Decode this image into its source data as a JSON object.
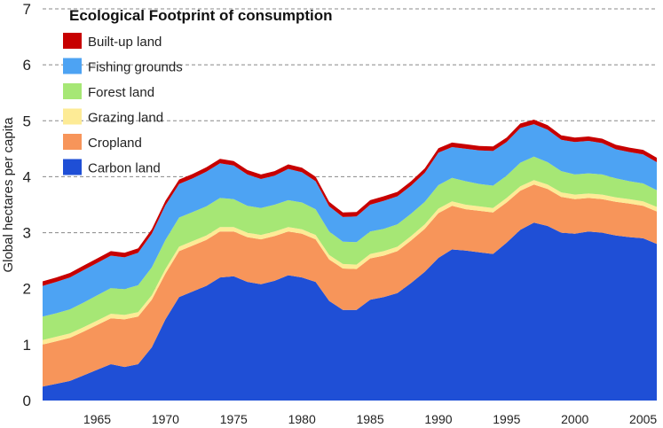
{
  "chart_data": {
    "type": "area",
    "stacked": true,
    "title": "Ecological Footprint of consumption",
    "xlabel": "",
    "ylabel": "Global hectares per capita",
    "xlim": [
      1961,
      2006
    ],
    "ylim": [
      0,
      7
    ],
    "x_ticks": [
      "1965",
      "1970",
      "1975",
      "1980",
      "1985",
      "1990",
      "1995",
      "2000",
      "2005"
    ],
    "y_ticks": [
      "0",
      "1",
      "2",
      "3",
      "4",
      "5",
      "6",
      "7"
    ],
    "grid": "dashed horizontal lines",
    "legend_position": "top-left",
    "x": [
      1961,
      1962,
      1963,
      1964,
      1965,
      1966,
      1967,
      1968,
      1969,
      1970,
      1971,
      1972,
      1973,
      1974,
      1975,
      1976,
      1977,
      1978,
      1979,
      1980,
      1981,
      1982,
      1983,
      1984,
      1985,
      1986,
      1987,
      1988,
      1989,
      1990,
      1991,
      1992,
      1993,
      1994,
      1995,
      1996,
      1997,
      1998,
      1999,
      2000,
      2001,
      2002,
      2003,
      2004,
      2005,
      2006
    ],
    "series": [
      {
        "name": "Carbon land",
        "color": "#1f4fd6",
        "values": [
          0.25,
          0.3,
          0.35,
          0.45,
          0.55,
          0.65,
          0.6,
          0.65,
          0.95,
          1.45,
          1.85,
          1.95,
          2.05,
          2.2,
          2.22,
          2.12,
          2.08,
          2.14,
          2.24,
          2.2,
          2.12,
          1.78,
          1.62,
          1.62,
          1.8,
          1.85,
          1.92,
          2.1,
          2.3,
          2.55,
          2.7,
          2.68,
          2.65,
          2.62,
          2.82,
          3.05,
          3.18,
          3.12,
          3.0,
          2.98,
          3.02,
          3.0,
          2.95,
          2.92,
          2.9,
          2.8
        ]
      },
      {
        "name": "Cropland",
        "color": "#f7955a",
        "values": [
          0.75,
          0.76,
          0.77,
          0.78,
          0.8,
          0.82,
          0.85,
          0.85,
          0.85,
          0.82,
          0.82,
          0.82,
          0.82,
          0.82,
          0.8,
          0.8,
          0.8,
          0.8,
          0.78,
          0.78,
          0.76,
          0.74,
          0.74,
          0.73,
          0.74,
          0.74,
          0.75,
          0.76,
          0.77,
          0.8,
          0.78,
          0.74,
          0.74,
          0.74,
          0.72,
          0.7,
          0.68,
          0.66,
          0.64,
          0.62,
          0.6,
          0.6,
          0.6,
          0.6,
          0.58,
          0.58
        ]
      },
      {
        "name": "Grazing land",
        "color": "#fdeb96",
        "values": [
          0.08,
          0.08,
          0.08,
          0.08,
          0.08,
          0.08,
          0.08,
          0.08,
          0.08,
          0.08,
          0.08,
          0.08,
          0.08,
          0.08,
          0.08,
          0.08,
          0.08,
          0.08,
          0.08,
          0.08,
          0.08,
          0.08,
          0.08,
          0.08,
          0.08,
          0.08,
          0.08,
          0.08,
          0.08,
          0.08,
          0.08,
          0.08,
          0.08,
          0.08,
          0.08,
          0.08,
          0.08,
          0.08,
          0.08,
          0.08,
          0.08,
          0.08,
          0.08,
          0.08,
          0.08,
          0.08
        ]
      },
      {
        "name": "Forest land",
        "color": "#a6e775",
        "values": [
          0.42,
          0.42,
          0.43,
          0.44,
          0.45,
          0.46,
          0.46,
          0.48,
          0.5,
          0.52,
          0.52,
          0.52,
          0.52,
          0.52,
          0.5,
          0.48,
          0.48,
          0.48,
          0.48,
          0.48,
          0.46,
          0.42,
          0.4,
          0.4,
          0.4,
          0.4,
          0.4,
          0.4,
          0.4,
          0.42,
          0.42,
          0.42,
          0.4,
          0.4,
          0.4,
          0.42,
          0.42,
          0.4,
          0.38,
          0.36,
          0.36,
          0.36,
          0.34,
          0.32,
          0.32,
          0.3
        ]
      },
      {
        "name": "Fishing grounds",
        "color": "#4da3f3",
        "values": [
          0.55,
          0.56,
          0.57,
          0.58,
          0.58,
          0.58,
          0.57,
          0.58,
          0.6,
          0.62,
          0.6,
          0.6,
          0.62,
          0.62,
          0.6,
          0.56,
          0.52,
          0.52,
          0.56,
          0.54,
          0.5,
          0.45,
          0.44,
          0.46,
          0.48,
          0.5,
          0.5,
          0.5,
          0.52,
          0.58,
          0.55,
          0.58,
          0.6,
          0.62,
          0.6,
          0.62,
          0.58,
          0.58,
          0.56,
          0.58,
          0.58,
          0.56,
          0.52,
          0.52,
          0.52,
          0.5
        ]
      },
      {
        "name": "Built-up land",
        "color": "#c70000",
        "values": [
          0.08,
          0.08,
          0.08,
          0.08,
          0.08,
          0.08,
          0.08,
          0.08,
          0.08,
          0.08,
          0.08,
          0.08,
          0.08,
          0.08,
          0.08,
          0.08,
          0.08,
          0.08,
          0.08,
          0.08,
          0.08,
          0.08,
          0.08,
          0.08,
          0.08,
          0.08,
          0.08,
          0.08,
          0.08,
          0.08,
          0.08,
          0.08,
          0.08,
          0.08,
          0.08,
          0.08,
          0.08,
          0.08,
          0.08,
          0.08,
          0.08,
          0.08,
          0.08,
          0.08,
          0.08,
          0.08
        ]
      }
    ],
    "legend_order": [
      "Built-up land",
      "Fishing grounds",
      "Forest land",
      "Grazing land",
      "Cropland",
      "Carbon land"
    ]
  }
}
